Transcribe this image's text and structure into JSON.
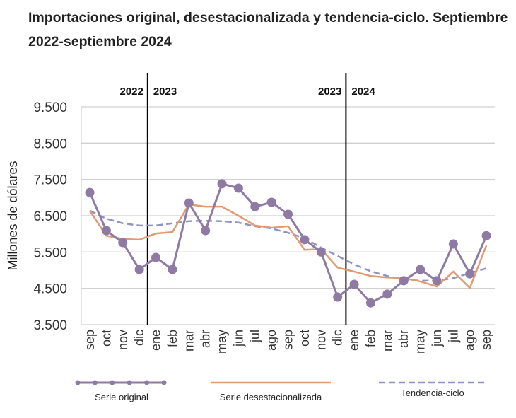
{
  "chart_data": {
    "type": "line",
    "title": "Importaciones original, desestacionalizada y tendencia-ciclo. Septiembre 2022-septiembre 2024",
    "ylabel": "Millones de dólares",
    "ylim": [
      3500,
      9500
    ],
    "yticks": [
      "9.500",
      "8.500",
      "7.500",
      "6.500",
      "5.500",
      "4.500",
      "3.500"
    ],
    "ytick_values": [
      9500,
      8500,
      7500,
      6500,
      5500,
      4500,
      3500
    ],
    "grid": true,
    "legend_position": "bottom",
    "categories": [
      "sep",
      "oct",
      "nov",
      "dic",
      "ene",
      "feb",
      "mar",
      "abr",
      "may",
      "jun",
      "jul",
      "ago",
      "sep",
      "oct",
      "nov",
      "dic",
      "ene",
      "feb",
      "mar",
      "abr",
      "may",
      "jun",
      "jul",
      "ago",
      "sep"
    ],
    "year_dividers": [
      {
        "after_index": 3,
        "left": "2022",
        "right": "2023"
      },
      {
        "after_index": 15,
        "left": "2023",
        "right": "2024"
      }
    ],
    "series": [
      {
        "name": "Serie original",
        "color": "#8e7aa3",
        "style": "line-markers",
        "values": [
          7140,
          6090,
          5760,
          5020,
          5350,
          5020,
          6850,
          6090,
          7380,
          7260,
          6750,
          6870,
          6540,
          5840,
          5500,
          4260,
          4610,
          4100,
          4340,
          4710,
          5020,
          4710,
          5720,
          4900,
          5950
        ]
      },
      {
        "name": "Serie desestacionalizada",
        "color": "#e39a72",
        "style": "line",
        "values": [
          6640,
          5950,
          5860,
          5840,
          6010,
          6050,
          6810,
          6750,
          6750,
          6500,
          6230,
          6170,
          6210,
          5560,
          5580,
          5070,
          4960,
          4840,
          4800,
          4780,
          4690,
          4550,
          4960,
          4510,
          5680
        ]
      },
      {
        "name": "Tendencia-ciclo",
        "color": "#8f93c4",
        "style": "dashed",
        "values": [
          6640,
          6420,
          6290,
          6230,
          6230,
          6290,
          6350,
          6360,
          6350,
          6310,
          6210,
          6150,
          6030,
          5880,
          5620,
          5390,
          5160,
          4970,
          4840,
          4740,
          4710,
          4710,
          4780,
          4920,
          5050
        ]
      }
    ]
  }
}
